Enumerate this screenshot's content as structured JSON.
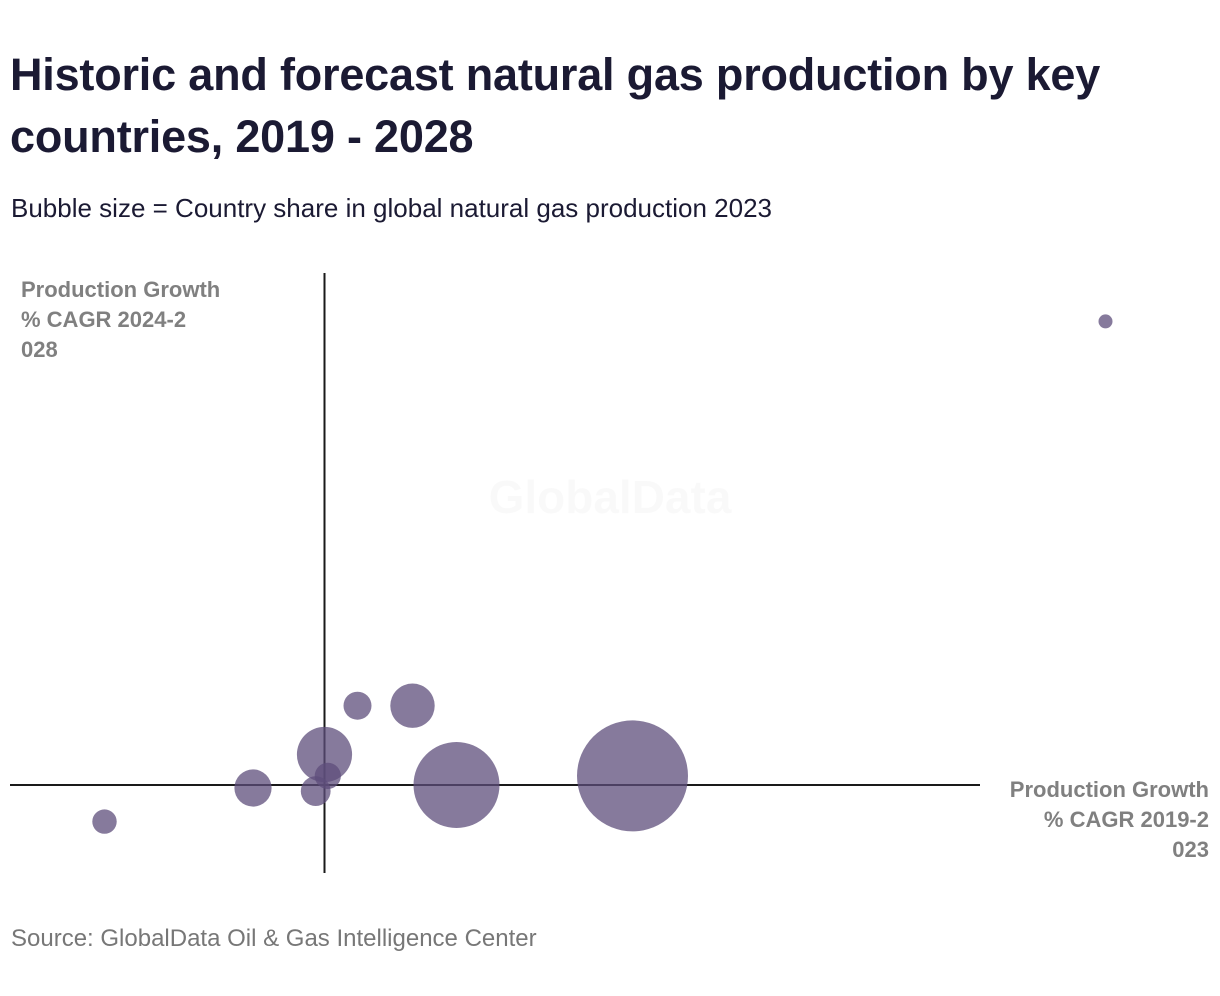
{
  "title": "Historic and forecast natural gas production by key countries, 2019 - 2028",
  "subtitle": "Bubble size = Country share in global natural gas production 2023",
  "source": "Source: GlobalData Oil & Gas Intelligence Center",
  "watermark": "GlobalData",
  "colors": {
    "bubble": "#5e4e7b",
    "axis": "#1a1a1a",
    "axis_label": "#808080"
  },
  "chart_data": {
    "type": "scatter",
    "title": "Historic and forecast natural gas production by key countries, 2019 - 2028",
    "subtitle": "Bubble size = Country share in global natural gas production 2023",
    "xlabel": "Production Growth % CAGR 2019-2023",
    "ylabel": "Production Growth % CAGR 2024-2028",
    "xlim": [
      -3,
      9
    ],
    "ylim": [
      -1.5,
      8.5
    ],
    "grid": false,
    "axes_cross_at_zero": true,
    "tick_labels_shown": false,
    "series": [
      {
        "points": [
          {
            "x": -2.0,
            "y": -0.6,
            "share": 0.6
          },
          {
            "x": -0.65,
            "y": -0.05,
            "share": 1.4
          },
          {
            "x": -0.08,
            "y": -0.1,
            "share": 0.9
          },
          {
            "x": 0.0,
            "y": 0.5,
            "share": 3.1
          },
          {
            "x": 0.03,
            "y": 0.15,
            "share": 0.7
          },
          {
            "x": 0.3,
            "y": 1.3,
            "share": 0.8
          },
          {
            "x": 0.8,
            "y": 1.3,
            "share": 2.0
          },
          {
            "x": 1.2,
            "y": 0.0,
            "share": 7.5
          },
          {
            "x": 2.8,
            "y": 0.15,
            "share": 12.5
          },
          {
            "x": 7.1,
            "y": 7.6,
            "share": 0.2
          }
        ]
      }
    ]
  }
}
